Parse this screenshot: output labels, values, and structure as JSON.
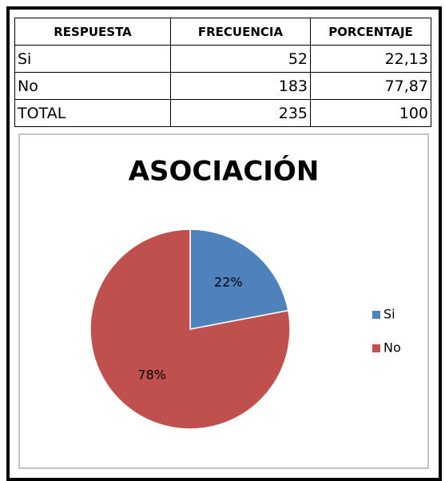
{
  "table": {
    "header": [
      "RESPUESTA",
      "FRECUENCIA",
      "PORCENTAJE"
    ],
    "rows": [
      [
        "Si",
        "52",
        "22,13"
      ],
      [
        "No",
        "183",
        "77,87"
      ],
      [
        "TOTAL",
        "235",
        "100"
      ]
    ]
  },
  "chart_data": {
    "type": "pie",
    "title": "ASOCIACIÓN",
    "categories": [
      "Si",
      "No"
    ],
    "values": [
      22,
      78
    ],
    "value_labels": [
      "22%",
      "78%"
    ],
    "colors": [
      "#4f81bd",
      "#c0504d"
    ],
    "legend": "right"
  }
}
